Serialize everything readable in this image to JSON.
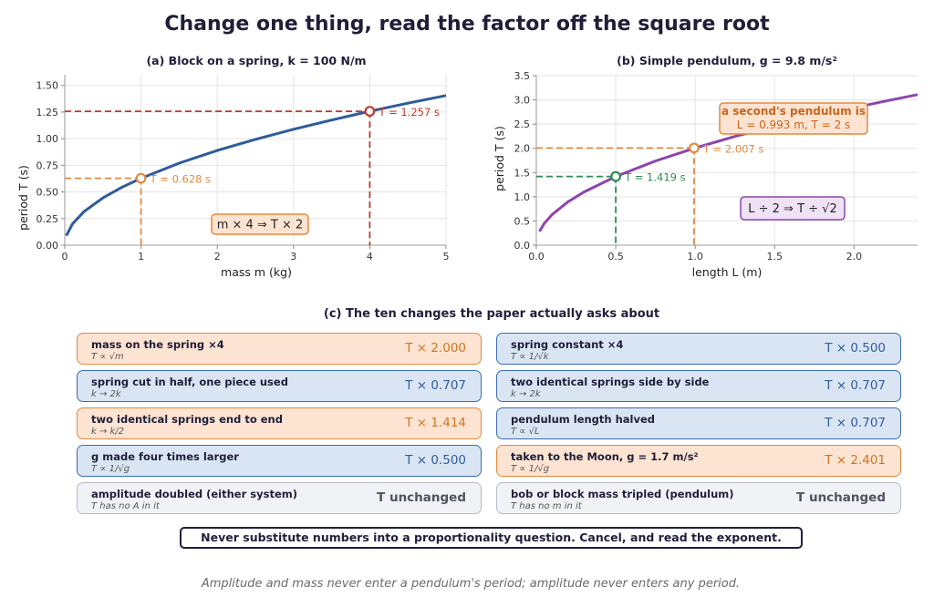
{
  "title": "Change one thing, read the factor off the square root",
  "chart_data": [
    {
      "type": "line",
      "title": "(a)  Block on a spring, k = 100 N/m",
      "xlabel": "mass m (kg)",
      "ylabel": "period T (s)",
      "xlim": [
        0,
        5
      ],
      "ylim": [
        0,
        1.6
      ],
      "xticks": [
        "0",
        "1",
        "2",
        "3",
        "4",
        "5"
      ],
      "yticks": [
        "0.00",
        "0.25",
        "0.50",
        "0.75",
        "1.00",
        "1.25",
        "1.50"
      ],
      "grid": true,
      "series": [
        {
          "color": "#2e5b9a",
          "x": [
            0.02,
            0.1,
            0.25,
            0.5,
            0.75,
            1,
            1.5,
            2,
            2.5,
            3,
            3.5,
            4,
            4.5,
            5
          ],
          "y": [
            0.089,
            0.199,
            0.314,
            0.444,
            0.544,
            0.628,
            0.77,
            0.889,
            0.993,
            1.088,
            1.175,
            1.257,
            1.333,
            1.405
          ]
        }
      ],
      "markers": [
        {
          "x": 1,
          "y": 0.628,
          "label": "T = 0.628 s",
          "color": "#e08a3f"
        },
        {
          "x": 4,
          "y": 1.257,
          "label": "T = 1.257 s",
          "color": "#c0392b"
        }
      ],
      "annotation": "m × 4 ⇒ T × 2"
    },
    {
      "type": "line",
      "title": "(b)  Simple pendulum, g = 9.8 m/s²",
      "xlabel": "length L (m)",
      "ylabel": "period T (s)",
      "xlim": [
        0,
        2.4
      ],
      "ylim": [
        0,
        3.5
      ],
      "xticks": [
        "0.0",
        "0.5",
        "1.0",
        "1.5",
        "2.0"
      ],
      "yticks": [
        "0.0",
        "0.5",
        "1.0",
        "1.5",
        "2.0",
        "2.5",
        "3.0",
        "3.5"
      ],
      "grid": true,
      "series": [
        {
          "color": "#8e44ad",
          "x": [
            0.02,
            0.05,
            0.1,
            0.2,
            0.3,
            0.5,
            0.75,
            1,
            1.25,
            1.5,
            1.75,
            2,
            2.2,
            2.4
          ],
          "y": [
            0.284,
            0.449,
            0.635,
            0.898,
            1.099,
            1.419,
            1.738,
            2.007,
            2.244,
            2.458,
            2.655,
            2.838,
            2.977,
            3.109
          ]
        }
      ],
      "markers": [
        {
          "x": 0.5,
          "y": 1.419,
          "label": "T = 1.419 s",
          "color": "#2e8b57"
        },
        {
          "x": 0.993,
          "y": 2.007,
          "label": "T = 2.007 s",
          "color": "#e08a3f"
        }
      ],
      "callout": {
        "line1": "a second's pendulum is",
        "line2": "L = 0.993 m, T = 2 s"
      },
      "annotation": "L ÷ 2 ⇒ T ÷ √2"
    }
  ],
  "section_c": {
    "title": "(c)  The ten changes the paper actually asks about",
    "cards": [
      {
        "label": "mass on the spring ×4",
        "sub": "T ∝ √m",
        "result": "T × 2.000",
        "style": "orange"
      },
      {
        "label": "spring constant ×4",
        "sub": "T ∝ 1/√k",
        "result": "T × 0.500",
        "style": "blue"
      },
      {
        "label": "spring cut in half, one piece used",
        "sub": "k → 2k",
        "result": "T × 0.707",
        "style": "blue"
      },
      {
        "label": "two identical springs side by side",
        "sub": "k → 2k",
        "result": "T × 0.707",
        "style": "blue"
      },
      {
        "label": "two identical springs end to end",
        "sub": "k → k/2",
        "result": "T × 1.414",
        "style": "orange"
      },
      {
        "label": "pendulum length halved",
        "sub": "T ∝ √L",
        "result": "T × 0.707",
        "style": "blue"
      },
      {
        "label": "g made four times larger",
        "sub": "T ∝ 1/√g",
        "result": "T × 0.500",
        "style": "blue"
      },
      {
        "label": "taken to the Moon, g = 1.7 m/s²",
        "sub": "T ∝ 1/√g",
        "result": "T × 2.401",
        "style": "orange"
      },
      {
        "label": "amplitude doubled (either system)",
        "sub": "T has no A in it",
        "result": "T unchanged",
        "style": "grey"
      },
      {
        "label": "bob or block mass tripled (pendulum)",
        "sub": "T has no m in it",
        "result": "T unchanged",
        "style": "grey"
      }
    ]
  },
  "rule_box": "Never substitute numbers into a proportionality question. Cancel, and read the exponent.",
  "footer": "Amplitude and mass never enter a pendulum's period; amplitude never enters any period."
}
